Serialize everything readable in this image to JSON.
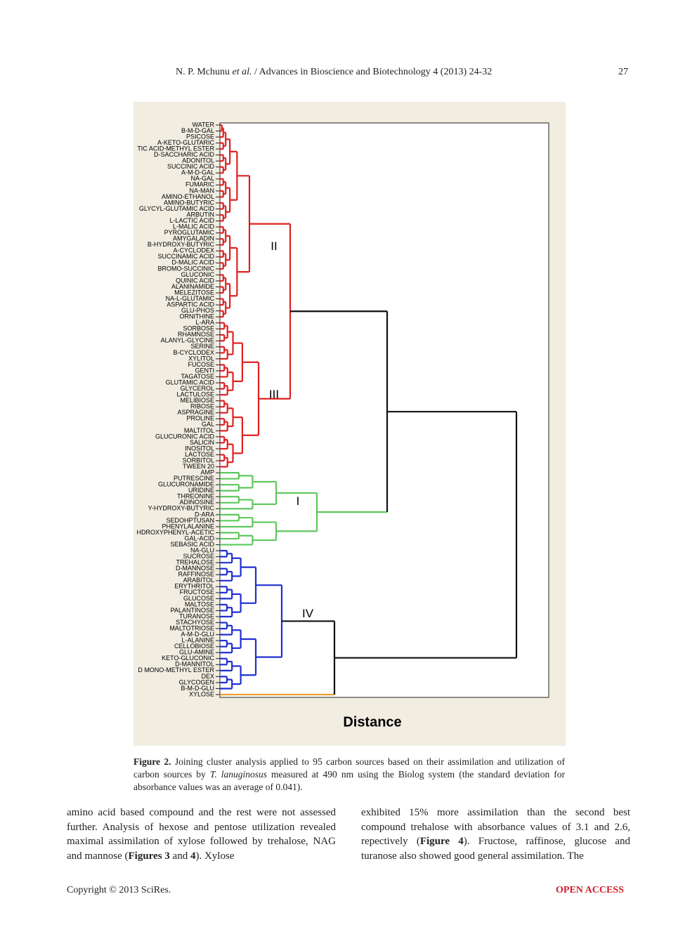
{
  "header": {
    "author": "N. P. Mchunu ",
    "etal": "et al.",
    "journal": " / Advances in Bioscience and Biotechnology 4 (2013) 24-32",
    "page": "27"
  },
  "figure": {
    "leaves": [
      "WATER",
      "B-M-D-GAL",
      "PSICOSE",
      "A-KETO-GLUTARIC",
      "TIC  ACID-METHYL ESTER",
      "D-SACCHARIC ACID",
      "ADONITOL",
      "SUCCINIC ACID",
      "A-M-D-GAL",
      "NA-GAL",
      "FUMARIC",
      "NA-MAN",
      "AMINO-ETHANOL",
      "AMINO-BUTYRIC",
      "GLYCYL-GLUTAMIC ACID",
      "ARBUTIN",
      "L-LACTIC ACID",
      "L-MALIC ACID",
      "PYROGLUTAMIC",
      "AMYGALADIN",
      "B-HYDROXY-BUTYRIC",
      "A-CYCLODEX",
      "SUCCINAMIC ACID",
      "D-MALIC ACID",
      "BROMO-SUCCINIC",
      "GLUCONIC",
      "QUINIC ACID",
      "ALANINAMIDE",
      "MELEZITOSE",
      "NA-L-GLUTAMIC",
      "ASPARTIC ACID",
      "GLU-PHOS",
      "ORNITHINE",
      "L-ARA",
      "SORBOSE",
      "RHAMNOSE",
      "ALANYL-GLYCINE",
      "SERINE",
      "B-CYCLODEX",
      "XYLITOL",
      "FUCOSE",
      "GENTI",
      "TAGATOSE",
      "GLUTAMIC ACID",
      "GLYCEROL",
      "LACTULOSE",
      "MELIBIOSE",
      "RIBOSE",
      "ASPRAGINE",
      "PROLINE",
      "GAL",
      "MALTITOL",
      "GLUCURONIC ACID",
      "SALICIN",
      "INOSITOL",
      "LACTOSE",
      "SORBITOL",
      "TWEEN 20",
      "AMP",
      "PUTRESCINE",
      "GLUCURONAMIDE",
      "URIDINE",
      "THREONINE",
      "ADINOSINE",
      "Y-HYDROXY-BUTYRIC",
      "D-ARA",
      "SEDOHPTUSAN",
      "PHENYLALANINE",
      "HDROXYPHENYL-ACETIC",
      "GAL-ACID",
      "SEBASIC ACID",
      "NA-GLU",
      "SUCROSE",
      "TREHALOSE",
      "D-MANNOSE",
      "RAFFINOSE",
      "ARABITOL",
      "ERYTHRITOL",
      "FRUCTOSE",
      "GLUCOSE",
      "MALTOSE",
      "PALANTINOSE",
      "TURANOSE",
      "STACHYOSE",
      "MALTOTRIOSE",
      "A-M-D-GLU",
      "L-ALANINE",
      "CELLOBIOSE",
      "GLU-AMINE",
      "KETO-GLUCONIC",
      "D-MANNITOL",
      "D MONO-METHYL ESTER",
      "DEX",
      "GLYCOGEN",
      "B-M-D-GLU",
      "XYLOSE"
    ],
    "cluster_labels": [
      "II",
      "III",
      "I",
      "IV"
    ],
    "xlabel": "Distance"
  },
  "caption": {
    "label": "Figure 2.",
    "text1": " Joining cluster analysis applied to 95 carbon sources based on their assimilation and utilization of carbon sources by ",
    "species": "T. lanuginosus",
    "text2": " measured at 490 nm using the Biolog system (the standard deviation for absorbance values was an average of 0.041)."
  },
  "body": {
    "left": [
      "amino acid based compound and the rest were not assessed further. Analysis of hexose and pentose utilization revealed maximal assimilation of xylose followed by trehalose, NAG and mannose (",
      "Figures 3",
      " and ",
      "4",
      "). Xylose"
    ],
    "right": [
      "exhibited 15% more assimilation than the second best compound trehalose with absorbance values of 3.1 and 2.6, repectively (",
      "Figure 4",
      "). Fructose, raffinose, glucose and turanose also showed good general assimilation. The"
    ]
  },
  "footer": {
    "copyright": "Copyright © 2013 SciRes.",
    "access": "OPEN ACCESS"
  }
}
